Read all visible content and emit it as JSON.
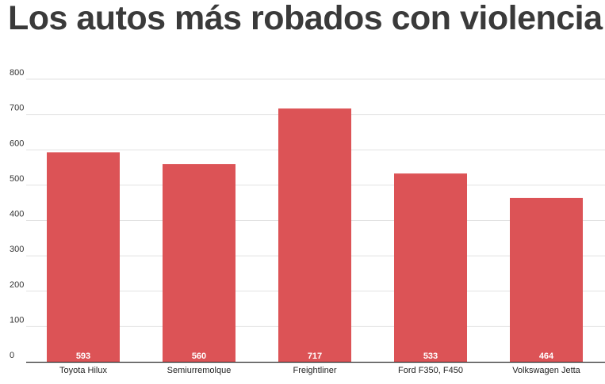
{
  "chart_data": {
    "type": "bar",
    "title": "Los autos más robados con violencia",
    "categories": [
      "Toyota Hilux",
      "Semiurremolque",
      "Freightliner",
      "Ford F350, F450",
      "Volkswagen Jetta"
    ],
    "values": [
      593,
      560,
      717,
      533,
      464
    ],
    "data_labels": [
      "593",
      "560",
      "717",
      "533",
      "464"
    ],
    "y_ticks": [
      "0",
      "100",
      "200",
      "300",
      "400",
      "500",
      "600",
      "700",
      "800"
    ],
    "ylim": [
      0,
      800
    ],
    "xlabel": "",
    "ylabel": "",
    "grid": true,
    "legend": "none",
    "colors": {
      "bar": "#dc5356",
      "grid": "#e2e2e2",
      "axis": "#333333",
      "title": "#3a3a3a"
    }
  }
}
